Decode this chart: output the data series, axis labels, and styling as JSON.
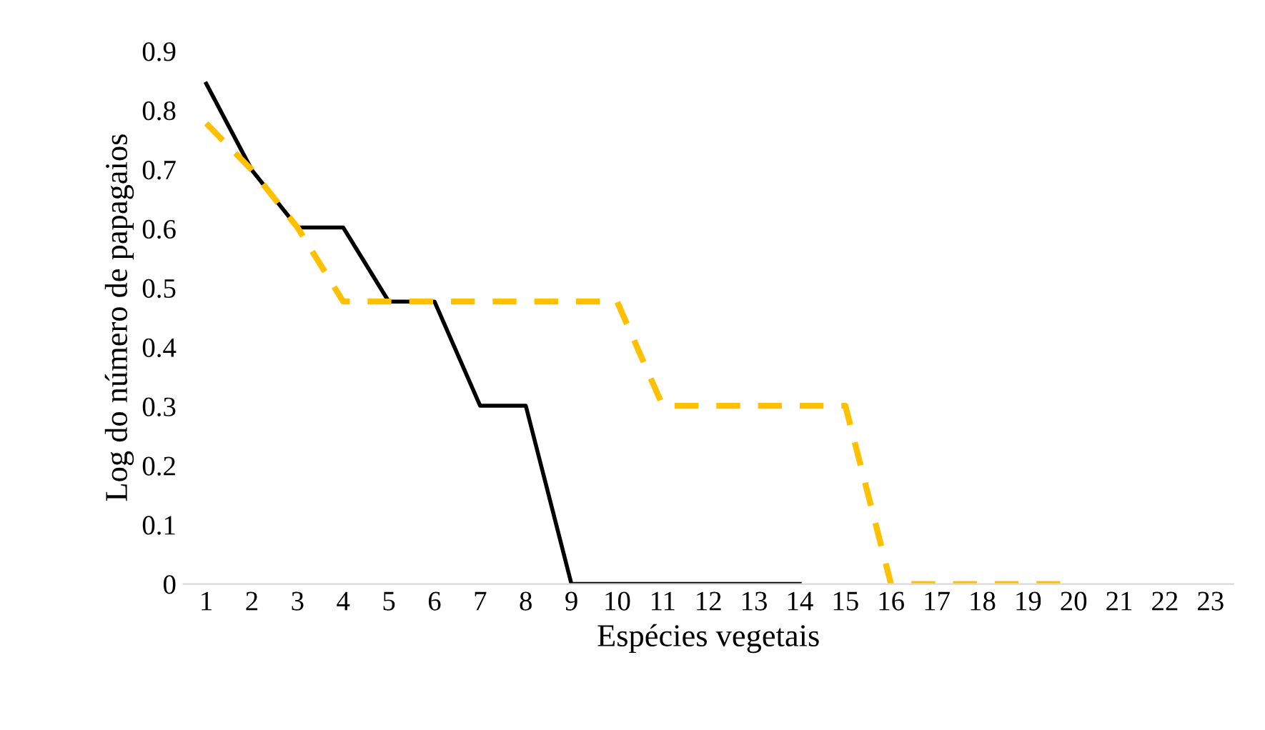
{
  "chart_data": {
    "type": "line",
    "xlabel": "Espécies vegetais",
    "ylabel": "Log do número de papagaios",
    "categories": [
      "1",
      "2",
      "3",
      "4",
      "5",
      "6",
      "7",
      "8",
      "9",
      "10",
      "11",
      "12",
      "13",
      "14",
      "15",
      "16",
      "17",
      "18",
      "19",
      "20",
      "21",
      "22",
      "23"
    ],
    "series": [
      {
        "color": "#000000",
        "line_style": "solid",
        "values": [
          0.845,
          0.699,
          0.602,
          0.602,
          0.477,
          0.477,
          0.301,
          0.301,
          0,
          0,
          0,
          0,
          0,
          0,
          null,
          null,
          null,
          null,
          null,
          null,
          null,
          null,
          null
        ]
      },
      {
        "color": "#ffc000",
        "line_style": "dashed",
        "values": [
          0.778,
          0.699,
          0.602,
          0.477,
          0.477,
          0.477,
          0.477,
          0.477,
          0.477,
          0.477,
          0.301,
          0.301,
          0.301,
          0.301,
          0.301,
          0,
          0,
          0,
          0,
          0,
          null,
          null,
          null
        ]
      }
    ],
    "ylim": [
      0,
      0.9
    ],
    "yticks": [
      0,
      0.1,
      0.2,
      0.3,
      0.4,
      0.5,
      0.6,
      0.7,
      0.8,
      0.9
    ],
    "grid": false,
    "legend": false,
    "marker": "none"
  }
}
